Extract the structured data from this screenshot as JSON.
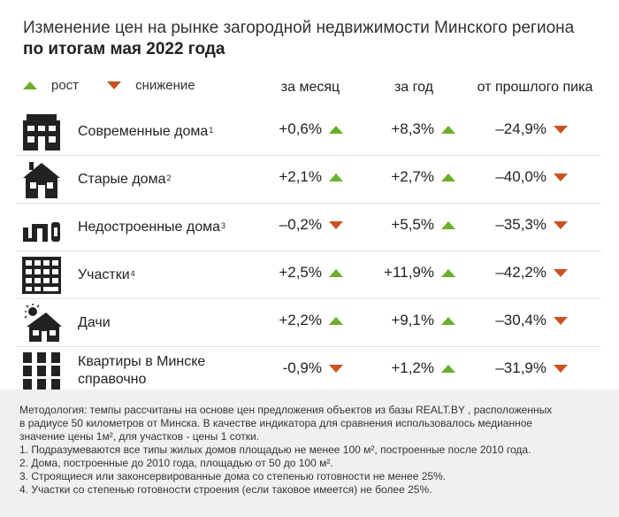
{
  "header": {
    "title_line1": "Изменение цен на рынке загородной недвижимости Минского региона",
    "title_line2": "по итогам мая 2022 года"
  },
  "legend": {
    "up_label": "рост",
    "down_label": "снижение"
  },
  "colors": {
    "up": "#6aae2a",
    "down": "#c9521e",
    "footer_bg": "#f0f0f0"
  },
  "columns": [
    "за месяц",
    "за год",
    "от прошлого пика"
  ],
  "chart_data": {
    "type": "table",
    "columns": [
      "за месяц",
      "за год",
      "от прошлого пика"
    ],
    "rows": [
      {
        "name": "Современные дома",
        "note": "1",
        "icon": "modern-house-icon",
        "values": [
          "+0,6%",
          "+8,3%",
          "–24,9%"
        ],
        "dirs": [
          "up",
          "up",
          "down"
        ]
      },
      {
        "name": "Старые дома",
        "note": "2",
        "icon": "old-house-icon",
        "values": [
          "+2,1%",
          "+2,7%",
          "–40,0%"
        ],
        "dirs": [
          "up",
          "up",
          "down"
        ]
      },
      {
        "name": "Недостроенные дома",
        "note": "3",
        "icon": "unfinished-house-icon",
        "values": [
          "–0,2%",
          "+5,5%",
          "–35,3%"
        ],
        "dirs": [
          "down",
          "up",
          "down"
        ]
      },
      {
        "name": "Участки",
        "note": "4",
        "icon": "land-plot-icon",
        "values": [
          "+2,5%",
          "+11,9%",
          "–42,2%"
        ],
        "dirs": [
          "up",
          "up",
          "down"
        ]
      },
      {
        "name": "Дачи",
        "note": "",
        "icon": "dacha-icon",
        "values": [
          "+2,2%",
          "+9,1%",
          "–30,4%"
        ],
        "dirs": [
          "up",
          "up",
          "down"
        ]
      },
      {
        "name": "Квартиры в Минске",
        "name2": "справочно",
        "note": "",
        "icon": "apartments-icon",
        "values": [
          "-0,9%",
          "+1,2%",
          "–31,9%"
        ],
        "dirs": [
          "down",
          "up",
          "down"
        ]
      }
    ]
  },
  "footer": {
    "lines": [
      "Методология: темпы рассчитаны на основе цен предложения объектов из базы REALT.BY , расположенных",
      "в радиусе 50 километров от Минска. В качестве индикатора для сравнения использовалось медианное",
      "значение цены 1м², для участков  - цены 1 сотки.",
      "1. Подразумеваются все типы жилых домов площадью не менее 100 м², построенные после 2010 года.",
      "2. Дома, построенные до 2010 года, площадью от 50 до 100 м².",
      "3. Строящиеся или законсервированные дома со степенью готовности не менее 25%.",
      "4. Участки со степенью готовности строения (если таковое имеется) не более 25%."
    ]
  }
}
